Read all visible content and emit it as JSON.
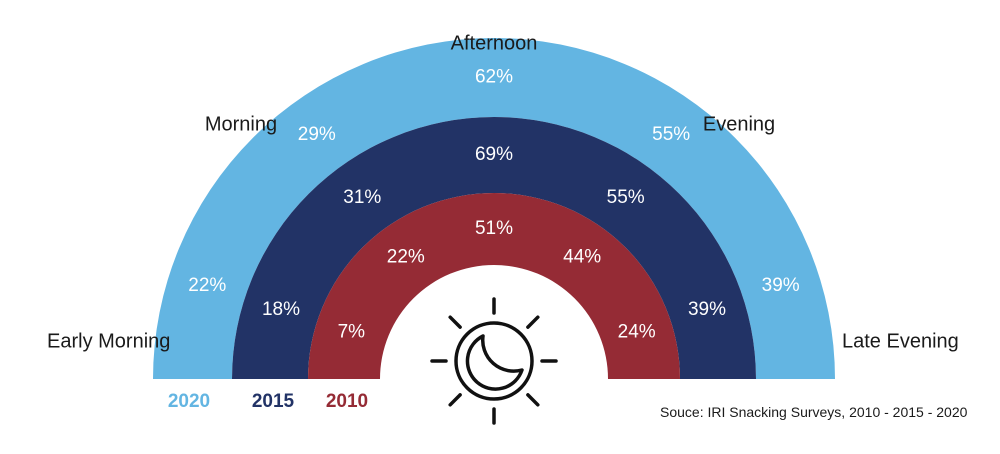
{
  "chart_data": {
    "type": "pie",
    "variant": "concentric-semicircle-rings",
    "categories": [
      "Early Morning",
      "Morning",
      "Afternoon",
      "Evening",
      "Late Evening"
    ],
    "series": [
      {
        "name": "2020",
        "color": "#63b5e2",
        "values": [
          "22%",
          "29%",
          "62%",
          "55%",
          "39%"
        ]
      },
      {
        "name": "2015",
        "color": "#223366",
        "values": [
          "18%",
          "31%",
          "69%",
          "55%",
          "39%"
        ]
      },
      {
        "name": "2010",
        "color": "#952b35",
        "values": [
          "7%",
          "22%",
          "51%",
          "44%",
          "24%"
        ]
      }
    ],
    "source": "Souce: IRI Snacking Surveys, 2010 - 2015 - 2020"
  },
  "icons": {
    "center": "sun-moon-icon"
  }
}
